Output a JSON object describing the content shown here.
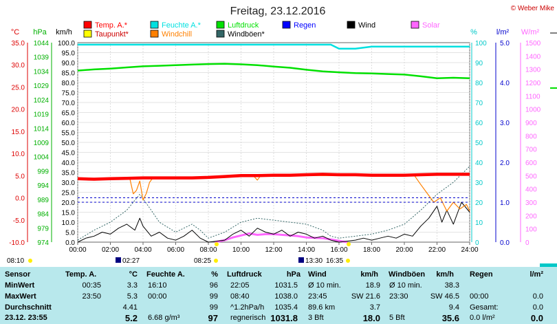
{
  "title": "Freitag, 23.12.2016",
  "copyright": "© Weber Mike",
  "axis_units": {
    "temp": "°C",
    "press": "hPa",
    "wind": "km/h",
    "hum": "%",
    "rain": "l/m²",
    "solar": "W/m²"
  },
  "legend": [
    {
      "name": "Temp. A.*",
      "color": "#ff0000"
    },
    {
      "name": "Feuchte A.*",
      "color": "#00e0e0"
    },
    {
      "name": "Luftdruck",
      "color": "#00e000"
    },
    {
      "name": "Regen",
      "color": "#0000ff"
    },
    {
      "name": "Wind",
      "color": "#000000"
    },
    {
      "name": "Solar",
      "color": "#ff66ff"
    },
    {
      "name": "Taupunkt*",
      "color": "#ffff00"
    },
    {
      "name": "Windchill",
      "color": "#ff8000"
    },
    {
      "name": "Windböen*",
      "color": "#336666"
    }
  ],
  "events": {
    "sunrise": "08:25",
    "sunset": "16:35",
    "moon_a": "02:27",
    "moon_b": "13:30",
    "time_marker": "08:10"
  },
  "chart_data": {
    "type": "line",
    "x_ticks": [
      "00:00",
      "02:00",
      "04:00",
      "06:00",
      "08:00",
      "10:00",
      "12:00",
      "14:00",
      "16:00",
      "18:00",
      "20:00",
      "22:00",
      "24:00"
    ],
    "temp_ticks": [
      "35.0",
      "30.0",
      "25.0",
      "20.0",
      "15.0",
      "10.0",
      "5.0",
      "0.0",
      "-5.0",
      "-10.0"
    ],
    "press_ticks": [
      "1044",
      "1039",
      "1034",
      "1029",
      "1024",
      "1019",
      "1014",
      "1009",
      "1004",
      "999",
      "994",
      "989",
      "984",
      "979",
      "974"
    ],
    "wind_ticks": [
      "100.0",
      "95.0",
      "90.0",
      "85.0",
      "80.0",
      "75.0",
      "70.0",
      "65.0",
      "60.0",
      "55.0",
      "50.0",
      "45.0",
      "40.0",
      "35.0",
      "30.0",
      "25.0",
      "20.0",
      "15.0",
      "10.0",
      "5.0",
      "0.0"
    ],
    "hum_ticks": [
      "100",
      "90",
      "80",
      "70",
      "60",
      "50",
      "40",
      "30",
      "20",
      "10",
      "0"
    ],
    "rain_ticks": [
      "5.0",
      "4.0",
      "3.0",
      "2.0",
      "1.0",
      "0.0"
    ],
    "solar_ticks": [
      "1500",
      "1400",
      "1300",
      "1200",
      "1100",
      "1000",
      "900",
      "800",
      "700",
      "600",
      "500",
      "400",
      "300",
      "200",
      "100",
      "0"
    ],
    "ranges": {
      "hours": [
        0,
        24
      ],
      "temp": [
        -10,
        35
      ],
      "wind": [
        0,
        100
      ],
      "hum": [
        0,
        100
      ],
      "rain": [
        0,
        5
      ],
      "solar": [
        0,
        1500
      ],
      "press": [
        974,
        1044
      ]
    },
    "series": [
      {
        "name": "Temp. A.*",
        "axis": "temp",
        "points": [
          [
            0,
            4.3
          ],
          [
            1,
            4.2
          ],
          [
            2,
            4.3
          ],
          [
            3,
            4.4
          ],
          [
            4,
            4.5
          ],
          [
            5,
            4.5
          ],
          [
            6,
            4.5
          ],
          [
            7,
            4.5
          ],
          [
            8,
            4.6
          ],
          [
            9,
            4.8
          ],
          [
            10,
            5.0
          ],
          [
            11,
            5.0
          ],
          [
            12,
            5.1
          ],
          [
            13,
            5.1
          ],
          [
            14,
            5.2
          ],
          [
            15,
            5.3
          ],
          [
            16,
            5.2
          ],
          [
            17,
            5.2
          ],
          [
            18,
            5.1
          ],
          [
            19,
            5.1
          ],
          [
            20,
            5.1
          ],
          [
            21,
            5.2
          ],
          [
            22,
            5.3
          ],
          [
            23,
            5.3
          ],
          [
            24,
            5.3
          ]
        ]
      },
      {
        "name": "Luftdruck",
        "axis": "press",
        "points": [
          [
            0,
            1034.2
          ],
          [
            1,
            1034.6
          ],
          [
            2,
            1034.9
          ],
          [
            3,
            1035.3
          ],
          [
            4,
            1035.7
          ],
          [
            5,
            1035.9
          ],
          [
            6,
            1036.1
          ],
          [
            7,
            1036.3
          ],
          [
            8,
            1036.5
          ],
          [
            9,
            1036.6
          ],
          [
            10,
            1036.4
          ],
          [
            11,
            1036.1
          ],
          [
            12,
            1035.6
          ],
          [
            13,
            1035.2
          ],
          [
            14,
            1034.5
          ],
          [
            15,
            1033.9
          ],
          [
            16,
            1033.6
          ],
          [
            17,
            1033.3
          ],
          [
            18,
            1033.2
          ],
          [
            19,
            1033.0
          ],
          [
            20,
            1032.8
          ],
          [
            21,
            1032.2
          ],
          [
            22,
            1031.5
          ],
          [
            23,
            1031.7
          ],
          [
            24,
            1031.5
          ]
        ]
      },
      {
        "name": "Feuchte A.*",
        "axis": "hum",
        "points": [
          [
            0,
            99
          ],
          [
            2,
            99
          ],
          [
            4,
            99
          ],
          [
            6,
            99
          ],
          [
            8,
            99
          ],
          [
            10,
            99
          ],
          [
            12,
            99
          ],
          [
            14,
            99
          ],
          [
            15.5,
            99
          ],
          [
            16,
            97
          ],
          [
            17,
            97
          ],
          [
            18,
            98
          ],
          [
            20,
            98
          ],
          [
            22,
            98
          ],
          [
            24,
            98
          ]
        ]
      },
      {
        "name": "Taupunkt*",
        "axis": "temp",
        "points": [
          [
            0,
            4.2
          ],
          [
            2,
            4.2
          ],
          [
            4,
            4.4
          ],
          [
            6,
            4.4
          ],
          [
            8,
            4.5
          ],
          [
            10,
            4.9
          ],
          [
            12,
            5.0
          ],
          [
            14,
            5.1
          ],
          [
            16,
            5.0
          ],
          [
            18,
            5.0
          ],
          [
            20,
            5.0
          ],
          [
            22,
            5.2
          ],
          [
            24,
            5.2
          ]
        ]
      },
      {
        "name": "Windchill",
        "axis": "temp",
        "points": [
          [
            3.2,
            4.2
          ],
          [
            3.4,
            0.9
          ],
          [
            3.6,
            1.7
          ],
          [
            3.8,
            3.8
          ],
          [
            4.0,
            -0.5
          ],
          [
            4.2,
            1.0
          ],
          [
            4.4,
            3.5
          ],
          [
            4.6,
            4.5
          ],
          [
            10.8,
            4.8
          ],
          [
            11.0,
            4.0
          ],
          [
            11.2,
            5.0
          ],
          [
            20.6,
            5.1
          ],
          [
            21.0,
            3.0
          ],
          [
            21.4,
            1.0
          ],
          [
            21.8,
            -1.0
          ],
          [
            22.2,
            0.0
          ],
          [
            22.6,
            -3.0
          ],
          [
            23.0,
            -1.0
          ],
          [
            23.4,
            -2.5
          ],
          [
            23.8,
            -1.5
          ],
          [
            24.0,
            -3.0
          ]
        ]
      },
      {
        "name": "Wind",
        "axis": "wind",
        "points": [
          [
            0,
            0
          ],
          [
            0.5,
            2
          ],
          [
            1,
            3
          ],
          [
            1.5,
            5
          ],
          [
            2,
            4
          ],
          [
            2.5,
            7
          ],
          [
            3,
            9
          ],
          [
            3.5,
            6
          ],
          [
            3.8,
            12
          ],
          [
            4,
            8
          ],
          [
            4.5,
            3
          ],
          [
            5,
            5
          ],
          [
            5.5,
            2
          ],
          [
            6,
            1
          ],
          [
            6.5,
            3
          ],
          [
            7,
            6
          ],
          [
            7.5,
            2
          ],
          [
            8,
            0
          ],
          [
            9,
            1
          ],
          [
            9.5,
            4
          ],
          [
            10,
            6
          ],
          [
            10.5,
            3
          ],
          [
            11,
            7
          ],
          [
            11.5,
            5
          ],
          [
            12,
            4
          ],
          [
            12.5,
            6
          ],
          [
            13,
            3
          ],
          [
            13.5,
            5
          ],
          [
            14,
            4
          ],
          [
            14.5,
            2
          ],
          [
            15,
            3
          ],
          [
            15.5,
            1
          ],
          [
            16,
            0
          ],
          [
            17,
            1
          ],
          [
            17.5,
            2
          ],
          [
            18,
            1
          ],
          [
            18.5,
            2
          ],
          [
            19,
            3
          ],
          [
            19.5,
            2
          ],
          [
            20,
            4
          ],
          [
            20.5,
            3
          ],
          [
            21,
            8
          ],
          [
            21.5,
            12
          ],
          [
            22,
            18
          ],
          [
            22.3,
            10
          ],
          [
            22.6,
            16
          ],
          [
            23,
            9
          ],
          [
            23.5,
            20
          ],
          [
            24,
            15
          ]
        ]
      },
      {
        "name": "Windböen*",
        "axis": "wind",
        "points": [
          [
            0,
            1
          ],
          [
            1,
            6
          ],
          [
            2,
            10
          ],
          [
            3,
            16
          ],
          [
            3.8,
            24
          ],
          [
            4.5,
            16
          ],
          [
            5,
            10
          ],
          [
            6,
            5
          ],
          [
            7,
            9
          ],
          [
            7.5,
            6
          ],
          [
            8,
            2
          ],
          [
            9,
            5
          ],
          [
            10,
            10
          ],
          [
            11,
            12
          ],
          [
            12,
            11
          ],
          [
            13,
            10
          ],
          [
            14,
            9
          ],
          [
            15,
            6
          ],
          [
            15.5,
            3
          ],
          [
            16,
            2
          ],
          [
            17,
            3
          ],
          [
            18,
            4
          ],
          [
            19,
            6
          ],
          [
            20,
            9
          ],
          [
            21,
            16
          ],
          [
            22,
            24
          ],
          [
            23,
            30
          ],
          [
            24,
            38
          ]
        ]
      },
      {
        "name": "Solar",
        "axis": "solar",
        "points": [
          [
            8.4,
            0
          ],
          [
            9,
            15
          ],
          [
            9.5,
            35
          ],
          [
            10,
            50
          ],
          [
            10.5,
            65
          ],
          [
            11,
            55
          ],
          [
            11.5,
            60
          ],
          [
            12,
            60
          ],
          [
            12.5,
            55
          ],
          [
            13,
            50
          ],
          [
            13.5,
            45
          ],
          [
            14,
            35
          ],
          [
            15,
            30
          ],
          [
            15.5,
            20
          ],
          [
            16,
            10
          ],
          [
            16.5,
            0
          ]
        ]
      }
    ],
    "rain_ref": 1.0
  },
  "table": {
    "head": [
      "Sensor",
      "Temp. A.",
      "°C",
      "Feuchte A.",
      "%",
      "Luftdruck",
      "hPa",
      "Wind",
      "km/h",
      "Windböen",
      "km/h",
      "Regen",
      "l/m²"
    ],
    "rows": [
      {
        "label": "MinWert",
        "c": [
          "00:35",
          "3.3",
          "16:10",
          "96",
          "22:05",
          "1031.5",
          "Ø 10 min.",
          "18.9",
          "Ø 10 min.",
          "38.3",
          "",
          ""
        ]
      },
      {
        "label": "MaxWert",
        "c": [
          "23:50",
          "5.3",
          "00:00",
          "99",
          "08:40",
          "1038.0",
          "23:45",
          "SW 21.6",
          "23:30",
          "SW 46.5",
          "00:00",
          "0.0"
        ]
      },
      {
        "label": "Durchschnitt",
        "c": [
          "",
          "4.41",
          "",
          "99",
          "^1.2hPa/h",
          "1035.4",
          "89.6 km",
          "3.7",
          "",
          "9.4",
          "Gesamt:",
          "0.0"
        ]
      },
      {
        "label": "23.12. 23:55",
        "c": [
          "",
          "5.2",
          "6.68 g/m³",
          "97",
          "regnerisch",
          "1031.8",
          "3 Bft",
          "18.0",
          "5 Bft",
          "35.6",
          "0.0 l/m²",
          "0.0"
        ]
      }
    ]
  }
}
